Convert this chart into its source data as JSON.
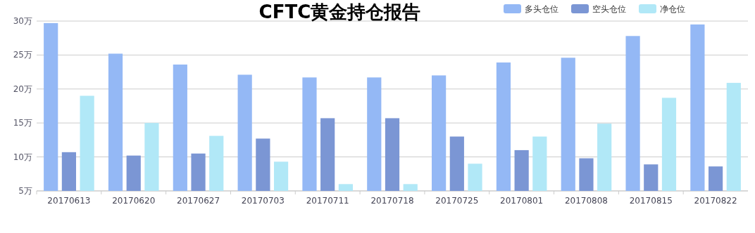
{
  "chart_data": {
    "type": "bar",
    "title": "CFTC黄金持仓报告",
    "categories": [
      "20170613",
      "20170620",
      "20170627",
      "20170703",
      "20170711",
      "20170718",
      "20170725",
      "20170801",
      "20170808",
      "20170815",
      "20170822"
    ],
    "series": [
      {
        "name": "多头仓位",
        "color": "#94b8f5",
        "values": [
          29.7,
          25.2,
          23.6,
          22.1,
          21.7,
          21.7,
          22.0,
          23.9,
          24.6,
          27.8,
          29.5
        ]
      },
      {
        "name": "空头仓位",
        "color": "#7b96d4",
        "values": [
          10.7,
          10.2,
          10.5,
          12.7,
          15.7,
          15.7,
          13.0,
          11.0,
          9.8,
          8.9,
          8.6
        ]
      },
      {
        "name": "净仓位",
        "color": "#b1e8f7",
        "values": [
          19.0,
          15.0,
          13.1,
          9.3,
          6.0,
          6.0,
          9.0,
          13.0,
          14.9,
          18.7,
          20.9
        ]
      }
    ],
    "ylim": [
      5,
      30
    ],
    "yticks": [
      {
        "value": 5,
        "label": "5万"
      },
      {
        "value": 10,
        "label": "10万"
      },
      {
        "value": 15,
        "label": "15万"
      },
      {
        "value": 20,
        "label": "20万"
      },
      {
        "value": 25,
        "label": "25万"
      },
      {
        "value": 30,
        "label": "30万"
      }
    ],
    "grid": "y",
    "legend": "top right"
  }
}
